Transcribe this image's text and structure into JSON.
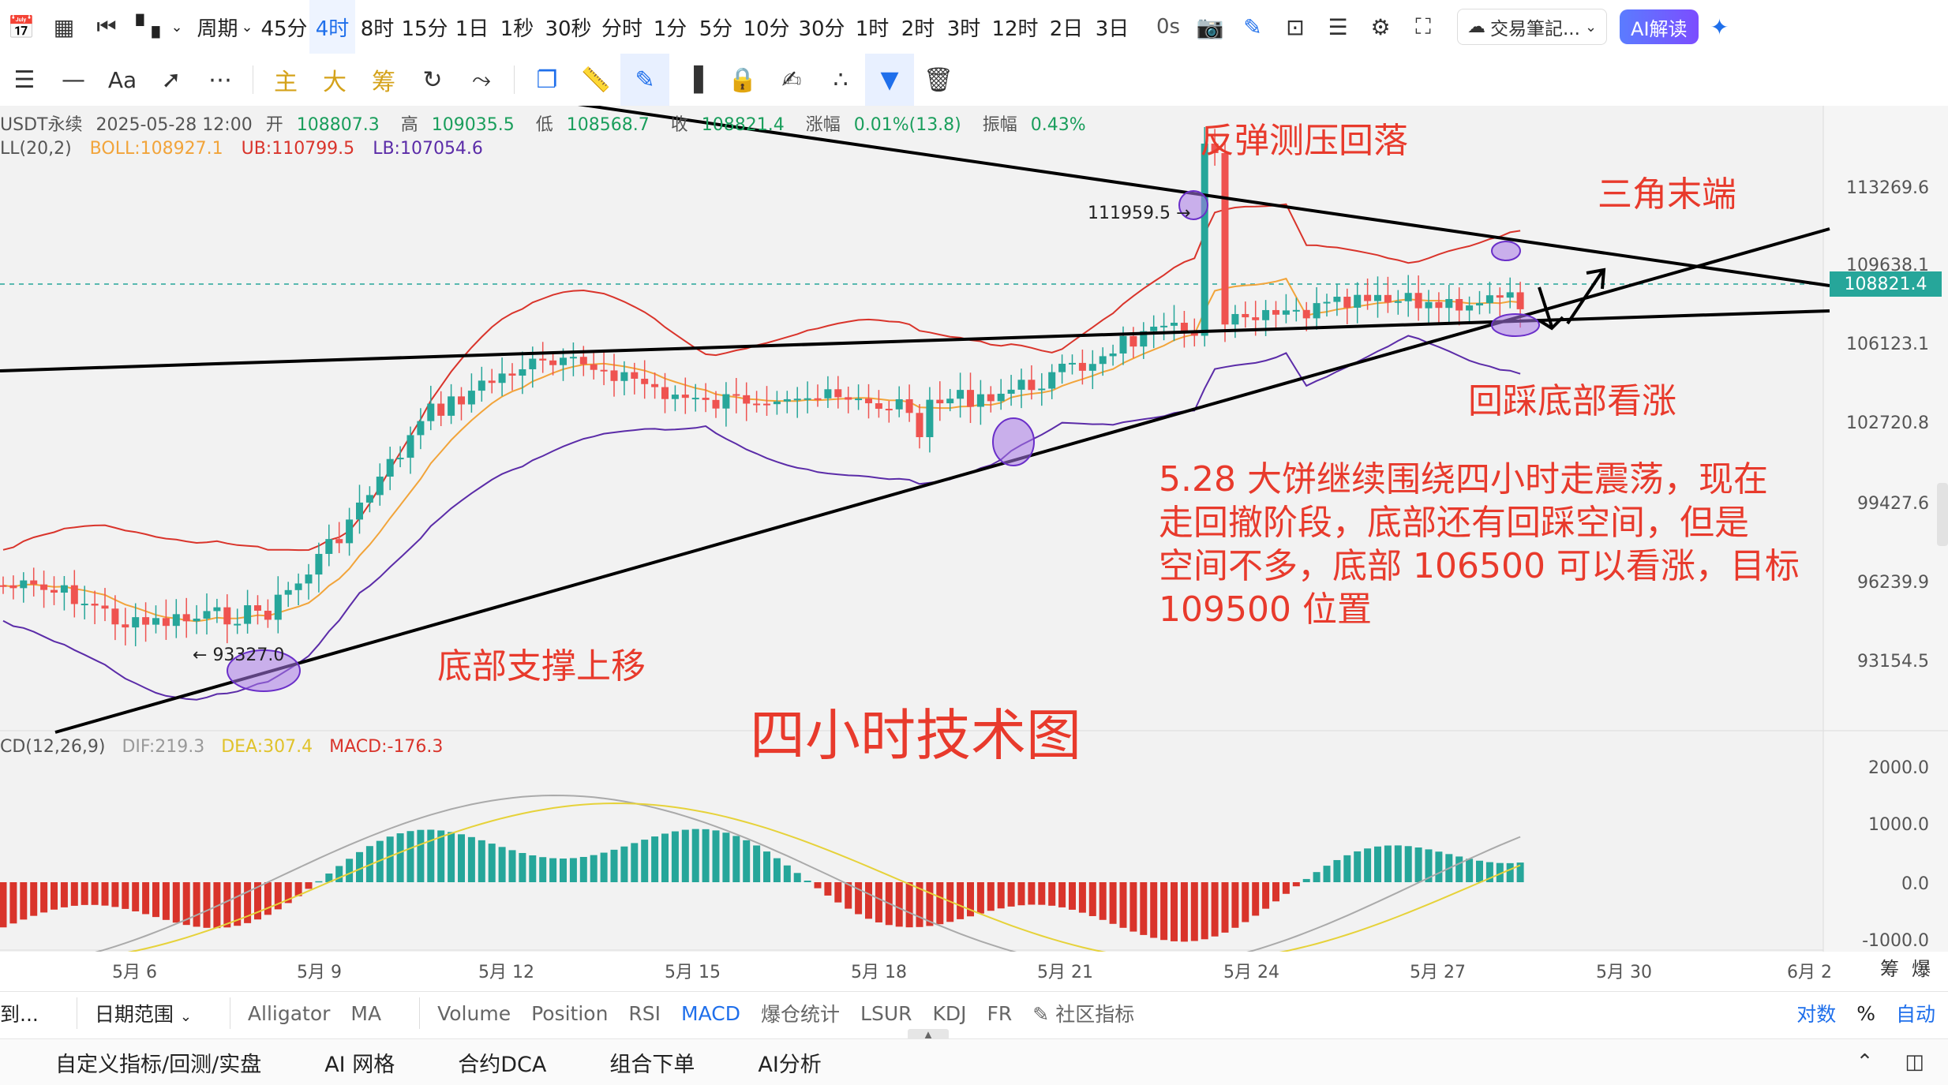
{
  "toolbar": {
    "intervals": [
      "周期",
      "45分",
      "4时",
      "8时",
      "15分",
      "1日",
      "1秒",
      "30秒",
      "分时",
      "1分",
      "5分",
      "10分",
      "30分",
      "1时",
      "2时",
      "3时",
      "12时",
      "2日",
      "3日"
    ],
    "active_interval": "4时",
    "timer": "0s",
    "notes_label": "交易筆記...",
    "ai_label": "AI解读"
  },
  "drawing_tools": {
    "text_label": "Aa",
    "main_label": "主",
    "big_label": "大",
    "chip_label": "筹"
  },
  "info": {
    "symbol": "USDT永续",
    "datetime": "2025-05-28 12:00",
    "open_label": "开",
    "open": "108807.3",
    "high_label": "高",
    "high": "109035.5",
    "low_label": "低",
    "low": "108568.7",
    "close_label": "收",
    "close": "108821.4",
    "change_label": "涨幅",
    "change": "0.01%(13.8)",
    "amp_label": "振幅",
    "amp": "0.43%"
  },
  "boll": {
    "name": "LL(20,2)",
    "mid": "BOLL:108927.1",
    "ub": "UB:110799.5",
    "lb": "LB:107054.6"
  },
  "macd": {
    "name": "CD(12,26,9)",
    "dif": "DIF:219.3",
    "dea": "DEA:307.4",
    "val": "MACD:-176.3"
  },
  "annotations": {
    "rebound": "反弹测压回落",
    "triangle_end": "三角末端",
    "pullback": "回踩底部看涨",
    "support_up": "底部支撑上移",
    "chart_title": "四小时技术图",
    "analysis_lines": [
      "5.28 大饼继续围绕四小时走震荡，现在",
      "走回撤阶段，底部还有回踩空间，但是",
      "空间不多，底部 106500 可以看涨，目标",
      "109500 位置"
    ],
    "high_marker": "111959.5",
    "low_marker": "93327.0"
  },
  "price_axis": {
    "ticks": [
      "113269.6",
      "109638.1",
      "106123.1",
      "102720.8",
      "99427.6",
      "96239.9",
      "93154.5"
    ],
    "current": "108821.4"
  },
  "macd_axis": {
    "ticks": [
      "2000.0",
      "1000.0",
      "0.0",
      "-1000.0"
    ]
  },
  "x_axis": {
    "ticks": [
      "5月 6",
      "5月 9",
      "5月 12",
      "5月 15",
      "5月 18",
      "5月 21",
      "5月 24",
      "5月 27",
      "5月 30",
      "6月 2"
    ],
    "corner_left": "筹",
    "corner_right": "爆"
  },
  "indicator_bar": {
    "left_label": "到...",
    "date_range": "日期范围",
    "main_indicators": [
      "Alligator",
      "MA"
    ],
    "sub_indicators": [
      "Volume",
      "Position",
      "RSI",
      "MACD",
      "爆仓统计",
      "LSUR",
      "KDJ",
      "FR"
    ],
    "active_sub": "MACD",
    "community": "社区指标",
    "scale_log": "对数",
    "scale_pct": "%",
    "scale_auto": "自动"
  },
  "footer": {
    "items": [
      "自定义指标/回测/实盘",
      "AI 网格",
      "合约DCA",
      "组合下单",
      "AI分析"
    ]
  },
  "colors": {
    "up": "#26a69a",
    "down": "#ef5350",
    "boll_upper": "#d9342b",
    "boll_mid": "#f2a43a",
    "boll_lower": "#5b2ca8",
    "annotation": "#e83a2c",
    "accent": "#1f6feb"
  }
}
